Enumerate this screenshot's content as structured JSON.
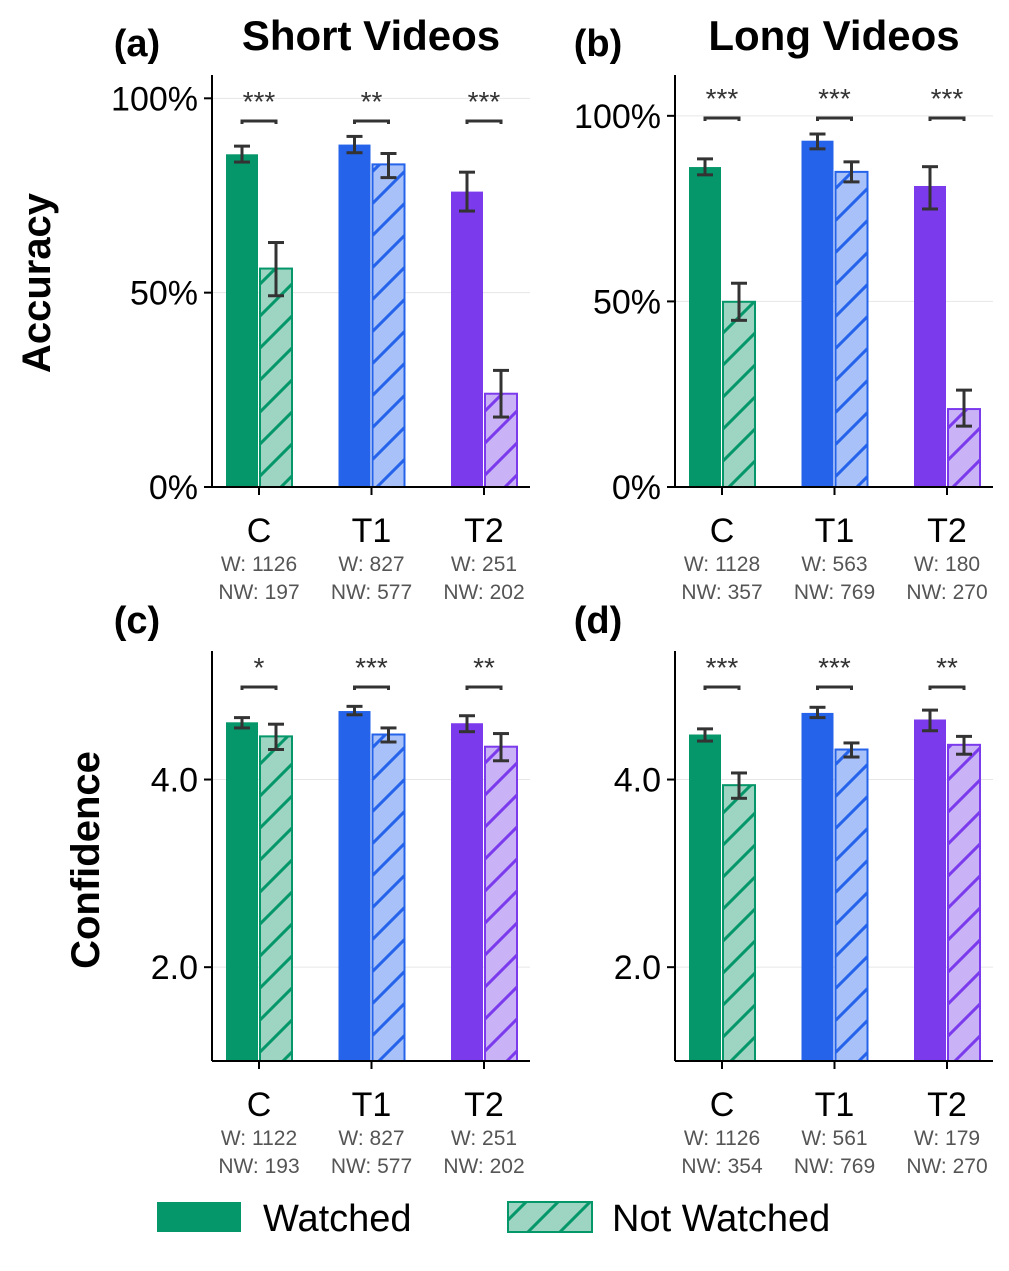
{
  "colors": {
    "C": "#059669",
    "T1": "#2563eb",
    "T2": "#7c3aed",
    "C_light": "#9dd5c2",
    "T1_light": "#a8c1f8",
    "T2_light": "#c9b3f6",
    "error": "#333333",
    "grid": "#e6e6e6"
  },
  "column_titles": [
    "Short Videos",
    "Long Videos"
  ],
  "row_labels": [
    "Accuracy",
    "Confidence"
  ],
  "legend": {
    "watched": "Watched",
    "not_watched": "Not Watched"
  },
  "chart_data": [
    {
      "panel": "(a)",
      "type": "bar",
      "ylabel": "Accuracy",
      "title": "Short Videos",
      "ylim": [
        0,
        106
      ],
      "yticks": [
        0,
        50,
        100
      ],
      "ytick_labels": [
        "0%",
        "50%",
        "100%"
      ],
      "grid": true,
      "categories": [
        "C",
        "T1",
        "T2"
      ],
      "counts": [
        "W: 1126|NW: 197",
        "W: 827|NW: 577",
        "W: 251|NW: 202"
      ],
      "significance": [
        "***",
        "**",
        "***"
      ],
      "series": [
        {
          "name": "Watched",
          "values": [
            85.6,
            88.1,
            76.0
          ],
          "err_low": [
            83.6,
            86.0,
            71.0
          ],
          "err_high": [
            87.7,
            90.2,
            81.0
          ]
        },
        {
          "name": "Not Watched",
          "values": [
            56.2,
            83.0,
            24.0
          ],
          "err_low": [
            49.2,
            79.6,
            18.0
          ],
          "err_high": [
            62.9,
            85.8,
            30.0
          ]
        }
      ]
    },
    {
      "panel": "(b)",
      "type": "bar",
      "ylabel": "",
      "title": "Long Videos",
      "ylim": [
        0,
        111
      ],
      "yticks": [
        0,
        50,
        100
      ],
      "ytick_labels": [
        "0%",
        "50%",
        "100%"
      ],
      "grid": true,
      "categories": [
        "C",
        "T1",
        "T2"
      ],
      "counts": [
        "W: 1128|NW: 357",
        "W: 563|NW: 769",
        "W: 180|NW: 270"
      ],
      "significance": [
        "***",
        "***",
        "***"
      ],
      "series": [
        {
          "name": "Watched",
          "values": [
            86.2,
            93.3,
            81.1
          ],
          "err_low": [
            84.1,
            91.1,
            74.9
          ],
          "err_high": [
            88.4,
            95.1,
            86.3
          ]
        },
        {
          "name": "Not Watched",
          "values": [
            49.9,
            84.9,
            21.0
          ],
          "err_low": [
            44.9,
            82.2,
            16.4
          ],
          "err_high": [
            54.9,
            87.6,
            26.1
          ]
        }
      ]
    },
    {
      "panel": "(c)",
      "type": "bar",
      "ylabel": "Confidence",
      "title": "",
      "ylim": [
        1,
        5.37
      ],
      "yticks": [
        2,
        4
      ],
      "ytick_labels": [
        "2.0",
        "4.0"
      ],
      "grid": true,
      "categories": [
        "C",
        "T1",
        "T2"
      ],
      "counts": [
        "W: 1122|NW: 193",
        "W: 827|NW: 577",
        "W: 251|NW: 202"
      ],
      "significance": [
        "*",
        "***",
        "**"
      ],
      "series": [
        {
          "name": "Watched",
          "values": [
            4.61,
            4.73,
            4.6
          ],
          "err_low": [
            4.55,
            4.69,
            4.51
          ],
          "err_high": [
            4.66,
            4.78,
            4.68
          ]
        },
        {
          "name": "Not Watched",
          "values": [
            4.46,
            4.48,
            4.35
          ],
          "err_low": [
            4.32,
            4.4,
            4.2
          ],
          "err_high": [
            4.59,
            4.55,
            4.49
          ]
        }
      ]
    },
    {
      "panel": "(d)",
      "type": "bar",
      "ylabel": "",
      "title": "",
      "ylim": [
        1,
        5.37
      ],
      "yticks": [
        2,
        4
      ],
      "ytick_labels": [
        "2.0",
        "4.0"
      ],
      "grid": true,
      "categories": [
        "C",
        "T1",
        "T2"
      ],
      "counts": [
        "W: 1126|NW: 354",
        "W: 561|NW: 769",
        "W: 179|NW: 270"
      ],
      "significance": [
        "***",
        "***",
        "**"
      ],
      "series": [
        {
          "name": "Watched",
          "values": [
            4.48,
            4.71,
            4.64
          ],
          "err_low": [
            4.41,
            4.66,
            4.52
          ],
          "err_high": [
            4.54,
            4.77,
            4.74
          ]
        },
        {
          "name": "Not Watched",
          "values": [
            3.94,
            4.32,
            4.37
          ],
          "err_low": [
            3.8,
            4.24,
            4.27
          ],
          "err_high": [
            4.07,
            4.39,
            4.46
          ]
        }
      ]
    }
  ]
}
